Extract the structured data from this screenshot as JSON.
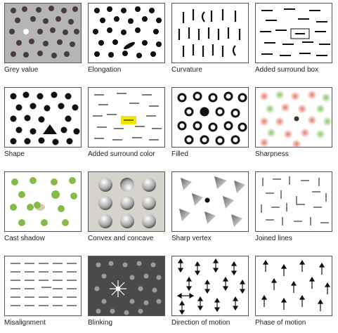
{
  "panels": [
    {
      "caption": "Grey value"
    },
    {
      "caption": "Elongation"
    },
    {
      "caption": "Curvature"
    },
    {
      "caption": "Added surround box"
    },
    {
      "caption": "Shape"
    },
    {
      "caption": "Added surround color"
    },
    {
      "caption": "Filled"
    },
    {
      "caption": "Sharpness"
    },
    {
      "caption": "Cast shadow"
    },
    {
      "caption": "Convex and concave"
    },
    {
      "caption": "Sharp vertex"
    },
    {
      "caption": "Joined lines"
    },
    {
      "caption": "Misalignment"
    },
    {
      "caption": "Blinking"
    },
    {
      "caption": "Direction of motion"
    },
    {
      "caption": "Phase of motion"
    }
  ],
  "colors": {
    "grey_background": "#b5b5b5",
    "dark_dot": "#4b3b3b",
    "black": "#111111",
    "highlight_yellow": "#f2e600",
    "sharp_red": "#e07c6a",
    "sharp_green": "#8cc46a",
    "shadow_green": "#86bb4a",
    "sphere_bg": "#d6d3cc",
    "blink_bg": "#4a4a4a"
  }
}
